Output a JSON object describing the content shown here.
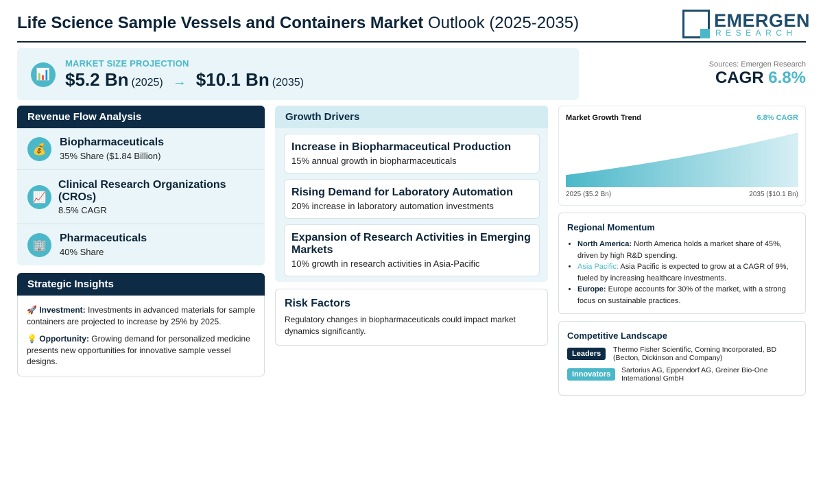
{
  "header": {
    "title_bold": "Life Science Sample Vessels and Containers Market",
    "title_rest": "Outlook (2025-2035)",
    "logo_name": "EMERGEN",
    "logo_sub": "RESEARCH"
  },
  "projection": {
    "label": "MARKET SIZE PROJECTION",
    "icon": "bar-chart-icon",
    "start_value": "$5.2 Bn",
    "start_year": "(2025)",
    "arrow": "→",
    "end_value": "$10.1 Bn",
    "end_year": "(2035)"
  },
  "summary": {
    "sources": "Sources: Emergen Research",
    "cagr_label": "CAGR",
    "cagr_value": "6.8%"
  },
  "revenue": {
    "title": "Revenue Flow Analysis",
    "items": [
      {
        "name": "Biopharmaceuticals",
        "sub": "35% Share ($1.84 Billion)",
        "icon": "money-bag-icon"
      },
      {
        "name": "Clinical Research Organizations (CROs)",
        "sub": "8.5% CAGR",
        "icon": "trend-chart-icon"
      },
      {
        "name": "Pharmaceuticals",
        "sub": "40% Share",
        "icon": "building-icon"
      }
    ]
  },
  "insights": {
    "title": "Strategic Insights",
    "items": [
      {
        "label": "Investment:",
        "text": "Investments in advanced materials for sample containers are projected to increase by 25% by 2025.",
        "icon": "rocket-icon"
      },
      {
        "label": "Opportunity:",
        "text": "Growing demand for personalized medicine presents new opportunities for innovative sample vessel designs.",
        "icon": "lightbulb-icon"
      }
    ]
  },
  "drivers": {
    "title": "Growth Drivers",
    "items": [
      {
        "title": "Increase in Biopharmaceutical Production",
        "sub": "15% annual growth in biopharmaceuticals"
      },
      {
        "title": "Rising Demand for Laboratory Automation",
        "sub": "20% increase in laboratory automation investments"
      },
      {
        "title": "Expansion of Research Activities in Emerging Markets",
        "sub": "10% growth in research activities in Asia-Pacific"
      }
    ]
  },
  "risk": {
    "title": "Risk Factors",
    "text": "Regulatory changes in biopharmaceuticals could impact market dynamics significantly."
  },
  "trend": {
    "title": "Market Growth Trend",
    "cagr_label": "6.8% CAGR",
    "start_label": "2025 ($5.2 Bn)",
    "end_label": "2035 ($10.1 Bn)"
  },
  "chart_data": {
    "type": "area",
    "title": "Market Growth Trend",
    "x": [
      2025,
      2035
    ],
    "values": [
      5.2,
      10.1
    ],
    "xlabel": "",
    "ylabel": "",
    "grid": false,
    "colors": [
      "#4bb8c9"
    ]
  },
  "regional": {
    "title": "Regional Momentum",
    "items": [
      {
        "region": "North America:",
        "text": "North America holds a market share of 45%, driven by high R&D spending."
      },
      {
        "region": "Asia Pacific:",
        "text": "Asia Pacific is expected to grow at a CAGR of 9%, fueled by increasing healthcare investments."
      },
      {
        "region": "Europe:",
        "text": "Europe accounts for 30% of the market, with a strong focus on sustainable practices."
      }
    ]
  },
  "competitive": {
    "title": "Competitive Landscape",
    "leaders_label": "Leaders",
    "leaders": "Thermo Fisher Scientific, Corning Incorporated, BD (Becton, Dickinson and Company)",
    "innovators_label": "Innovators",
    "innovators": "Sartorius AG, Eppendorf AG, Greiner Bio-One International GmbH"
  },
  "colors": {
    "navy": "#0d2b45",
    "accent": "#4bb8c9",
    "panel": "#e9f5f8"
  }
}
